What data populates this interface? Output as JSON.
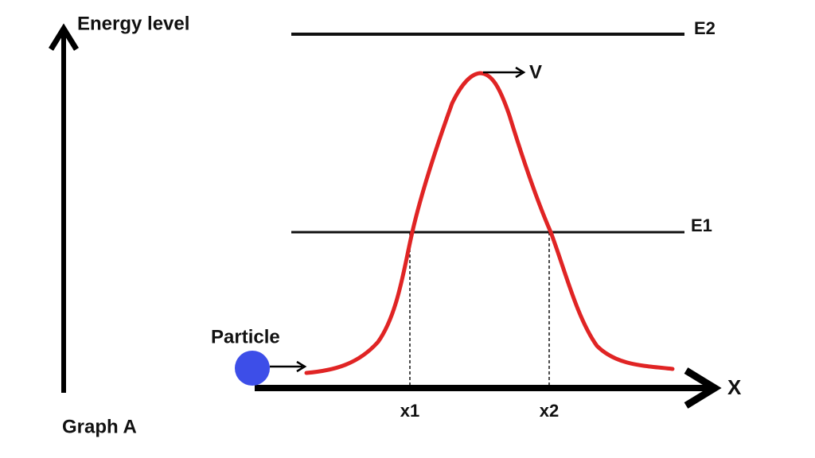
{
  "y_axis_label": "Energy level",
  "x_axis_label": "X",
  "levels": {
    "upper": "E2",
    "lower": "E1"
  },
  "peak_label": "V",
  "particle_label": "Particle",
  "points": {
    "left": "x1",
    "right": "x2"
  },
  "caption": "Graph A"
}
